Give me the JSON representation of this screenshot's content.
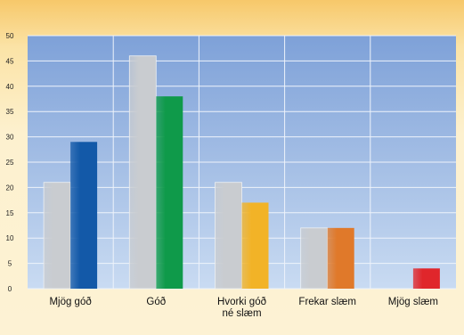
{
  "chart_data": {
    "type": "bar",
    "title": "",
    "xlabel": "",
    "ylabel": "",
    "ylim": [
      0,
      50
    ],
    "yticks": [
      0,
      5,
      10,
      15,
      20,
      25,
      30,
      35,
      40,
      45,
      50
    ],
    "grid": true,
    "categories": [
      [
        "Mjög góð"
      ],
      [
        "Góð"
      ],
      [
        "Hvorki góð",
        "né slæm"
      ],
      [
        "Frekar slæm"
      ],
      [
        "Mjög slæm"
      ]
    ],
    "series": [
      {
        "values": [
          21,
          46,
          21,
          12,
          0
        ],
        "colors": [
          "#c9ccd0"
        ]
      },
      {
        "values": [
          29,
          38,
          17,
          12,
          4
        ],
        "colors": [
          "#1359a8",
          "#0f9a4a",
          "#f2b327",
          "#e0792a",
          "#e0262b"
        ]
      }
    ]
  }
}
